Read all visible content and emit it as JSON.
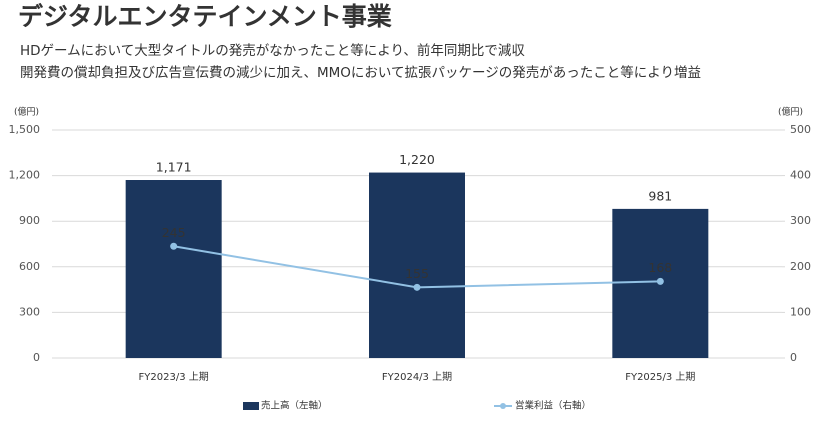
{
  "chart_data": {
    "type": "bar_line",
    "title": "デジタルエンタテインメント事業",
    "subtitle": [
      "HDゲームにおいて大型タイトルの発売がなかったこと等により、前年同期比で減収",
      "開発費の償却負担及び広告宣伝費の減少に加え、MMOにおいて拡張パッケージの発売があったこと等により増益"
    ],
    "y_unit": "(億円)",
    "y2_unit": "(億円)",
    "categories": [
      "FY2023/3 上期",
      "FY2024/3 上期",
      "FY2025/3 上期"
    ],
    "series": [
      {
        "name": "売上高（左軸）",
        "type": "bar",
        "color": "#1b365d",
        "values": [
          1171,
          1220,
          981
        ],
        "value_labels": [
          "1,171",
          "1,220",
          "981"
        ]
      },
      {
        "name": "営業利益（右軸）",
        "type": "line",
        "axis": "y2",
        "color": "#92c1e4",
        "values": [
          245,
          155,
          168
        ]
      }
    ],
    "ylim": [
      0,
      1500
    ],
    "yticks": [
      0,
      300,
      600,
      900,
      {
        "value": 1200,
        "label": "1,200"
      },
      {
        "value": 1500,
        "label": "1,500"
      }
    ],
    "y2lim": [
      0,
      500
    ],
    "y2ticks": [
      0,
      100,
      200,
      300,
      400,
      500
    ],
    "grid": true
  }
}
